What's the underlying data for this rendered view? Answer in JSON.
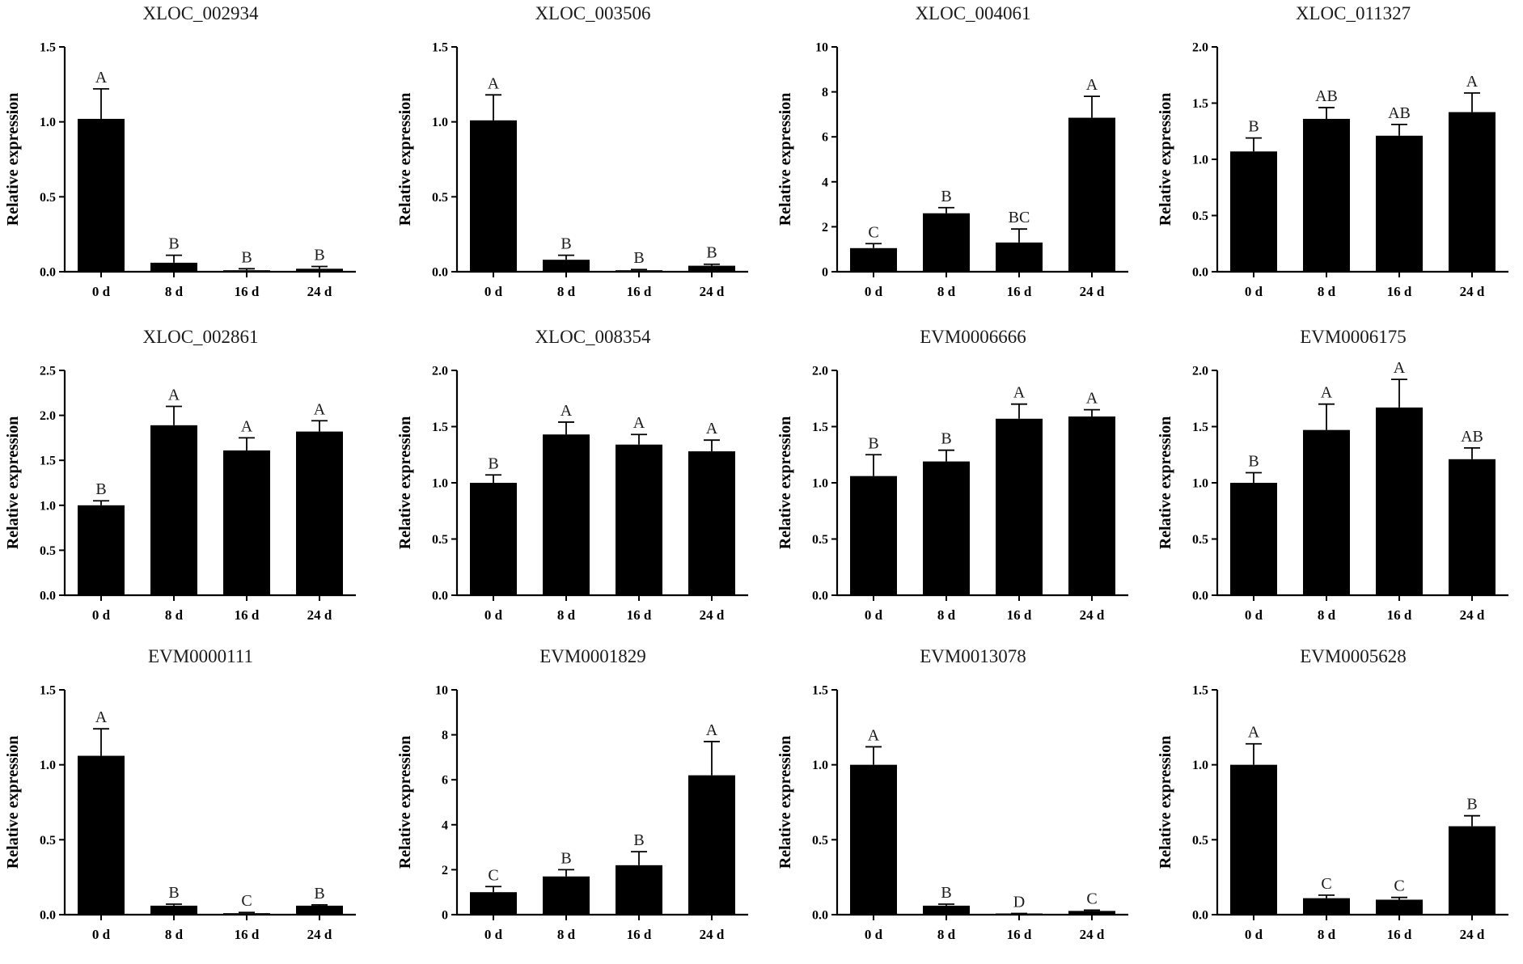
{
  "chart_data": [
    {
      "type": "bar",
      "title": "XLOC_002934",
      "ylabel": "Relative expression",
      "categories": [
        "0 d",
        "8 d",
        "16 d",
        "24 d"
      ],
      "values": [
        1.02,
        0.06,
        0.01,
        0.02
      ],
      "errors": [
        0.2,
        0.05,
        0.01,
        0.015
      ],
      "letters": [
        "A",
        "B",
        "B",
        "B"
      ],
      "ylim": [
        0,
        1.5
      ],
      "yticks": [
        "0.0",
        "0.5",
        "1.0",
        "1.5"
      ],
      "ytick_values": [
        0,
        0.5,
        1.0,
        1.5
      ]
    },
    {
      "type": "bar",
      "title": "XLOC_003506",
      "ylabel": "Relative expression",
      "categories": [
        "0 d",
        "8 d",
        "16 d",
        "24 d"
      ],
      "values": [
        1.01,
        0.08,
        0.01,
        0.04
      ],
      "errors": [
        0.17,
        0.03,
        0.005,
        0.01
      ],
      "letters": [
        "A",
        "B",
        "B",
        "B"
      ],
      "ylim": [
        0,
        1.5
      ],
      "yticks": [
        "0.0",
        "0.5",
        "1.0",
        "1.5"
      ],
      "ytick_values": [
        0,
        0.5,
        1.0,
        1.5
      ]
    },
    {
      "type": "bar",
      "title": "XLOC_004061",
      "ylabel": "Relative expression",
      "categories": [
        "0 d",
        "8 d",
        "16 d",
        "24 d"
      ],
      "values": [
        1.05,
        2.6,
        1.3,
        6.85
      ],
      "errors": [
        0.2,
        0.25,
        0.6,
        0.95
      ],
      "letters": [
        "C",
        "B",
        "BC",
        "A"
      ],
      "ylim": [
        0,
        10
      ],
      "yticks": [
        "0",
        "2",
        "4",
        "6",
        "8",
        "10"
      ],
      "ytick_values": [
        0,
        2,
        4,
        6,
        8,
        10
      ]
    },
    {
      "type": "bar",
      "title": "XLOC_011327",
      "ylabel": "Relative expression",
      "categories": [
        "0 d",
        "8 d",
        "16 d",
        "24 d"
      ],
      "values": [
        1.07,
        1.36,
        1.21,
        1.42
      ],
      "errors": [
        0.12,
        0.1,
        0.1,
        0.17
      ],
      "letters": [
        "B",
        "AB",
        "AB",
        "A"
      ],
      "ylim": [
        0,
        2.0
      ],
      "yticks": [
        "0.0",
        "0.5",
        "1.0",
        "1.5",
        "2.0"
      ],
      "ytick_values": [
        0,
        0.5,
        1.0,
        1.5,
        2.0
      ]
    },
    {
      "type": "bar",
      "title": "XLOC_002861",
      "ylabel": "Relative expression",
      "categories": [
        "0 d",
        "8 d",
        "16 d",
        "24 d"
      ],
      "values": [
        1.0,
        1.89,
        1.61,
        1.82
      ],
      "errors": [
        0.05,
        0.21,
        0.14,
        0.12
      ],
      "letters": [
        "B",
        "A",
        "A",
        "A"
      ],
      "ylim": [
        0,
        2.5
      ],
      "yticks": [
        "0.0",
        "0.5",
        "1.0",
        "1.5",
        "2.0",
        "2.5"
      ],
      "ytick_values": [
        0,
        0.5,
        1.0,
        1.5,
        2.0,
        2.5
      ]
    },
    {
      "type": "bar",
      "title": "XLOC_008354",
      "ylabel": "Relative expression",
      "categories": [
        "0 d",
        "8 d",
        "16 d",
        "24 d"
      ],
      "values": [
        1.0,
        1.43,
        1.34,
        1.28
      ],
      "errors": [
        0.07,
        0.11,
        0.09,
        0.1
      ],
      "letters": [
        "B",
        "A",
        "A",
        "A"
      ],
      "ylim": [
        0,
        2.0
      ],
      "yticks": [
        "0.0",
        "0.5",
        "1.0",
        "1.5",
        "2.0"
      ],
      "ytick_values": [
        0,
        0.5,
        1.0,
        1.5,
        2.0
      ]
    },
    {
      "type": "bar",
      "title": "EVM0006666",
      "ylabel": "Relative expression",
      "categories": [
        "0 d",
        "8 d",
        "16 d",
        "24 d"
      ],
      "values": [
        1.06,
        1.19,
        1.57,
        1.59
      ],
      "errors": [
        0.19,
        0.1,
        0.13,
        0.06
      ],
      "letters": [
        "B",
        "B",
        "A",
        "A"
      ],
      "ylim": [
        0,
        2.0
      ],
      "yticks": [
        "0.0",
        "0.5",
        "1.0",
        "1.5",
        "2.0"
      ],
      "ytick_values": [
        0,
        0.5,
        1.0,
        1.5,
        2.0
      ]
    },
    {
      "type": "bar",
      "title": "EVM0006175",
      "ylabel": "Relative expression",
      "categories": [
        "0 d",
        "8 d",
        "16 d",
        "24 d"
      ],
      "values": [
        1.0,
        1.47,
        1.67,
        1.21
      ],
      "errors": [
        0.09,
        0.23,
        0.25,
        0.1
      ],
      "letters": [
        "B",
        "A",
        "A",
        "AB"
      ],
      "ylim": [
        0,
        2.0
      ],
      "yticks": [
        "0.0",
        "0.5",
        "1.0",
        "1.5",
        "2.0"
      ],
      "ytick_values": [
        0,
        0.5,
        1.0,
        1.5,
        2.0
      ]
    },
    {
      "type": "bar",
      "title": "EVM0000111",
      "ylabel": "Relative expression",
      "categories": [
        "0 d",
        "8 d",
        "16 d",
        "24 d"
      ],
      "values": [
        1.06,
        0.06,
        0.01,
        0.06
      ],
      "errors": [
        0.18,
        0.01,
        0.005,
        0.005
      ],
      "letters": [
        "A",
        "B",
        "C",
        "B"
      ],
      "ylim": [
        0,
        1.5
      ],
      "yticks": [
        "0.0",
        "0.5",
        "1.0",
        "1.5"
      ],
      "ytick_values": [
        0,
        0.5,
        1.0,
        1.5
      ]
    },
    {
      "type": "bar",
      "title": "EVM0001829",
      "ylabel": "Relative expression",
      "categories": [
        "0 d",
        "8 d",
        "16 d",
        "24 d"
      ],
      "values": [
        1.0,
        1.7,
        2.2,
        6.2
      ],
      "errors": [
        0.25,
        0.3,
        0.6,
        1.5
      ],
      "letters": [
        "C",
        "B",
        "B",
        "A"
      ],
      "ylim": [
        0,
        10
      ],
      "yticks": [
        "0",
        "2",
        "4",
        "6",
        "8",
        "10"
      ],
      "ytick_values": [
        0,
        2,
        4,
        6,
        8,
        10
      ]
    },
    {
      "type": "bar",
      "title": "EVM0013078",
      "ylabel": "Relative expression",
      "categories": [
        "0 d",
        "8 d",
        "16 d",
        "24 d"
      ],
      "values": [
        1.0,
        0.06,
        0.005,
        0.025
      ],
      "errors": [
        0.12,
        0.01,
        0.003,
        0.005
      ],
      "letters": [
        "A",
        "B",
        "D",
        "C"
      ],
      "ylim": [
        0,
        1.5
      ],
      "yticks": [
        "0.0",
        "0.5",
        "1.0",
        "1.5"
      ],
      "ytick_values": [
        0,
        0.5,
        1.0,
        1.5
      ]
    },
    {
      "type": "bar",
      "title": "EVM0005628",
      "ylabel": "Relative expression",
      "categories": [
        "0 d",
        "8 d",
        "16 d",
        "24 d"
      ],
      "values": [
        1.0,
        0.11,
        0.1,
        0.59
      ],
      "errors": [
        0.14,
        0.02,
        0.015,
        0.07
      ],
      "letters": [
        "A",
        "C",
        "C",
        "B"
      ],
      "ylim": [
        0,
        1.5
      ],
      "yticks": [
        "0.0",
        "0.5",
        "1.0",
        "1.5"
      ],
      "ytick_values": [
        0,
        0.5,
        1.0,
        1.5
      ]
    }
  ]
}
